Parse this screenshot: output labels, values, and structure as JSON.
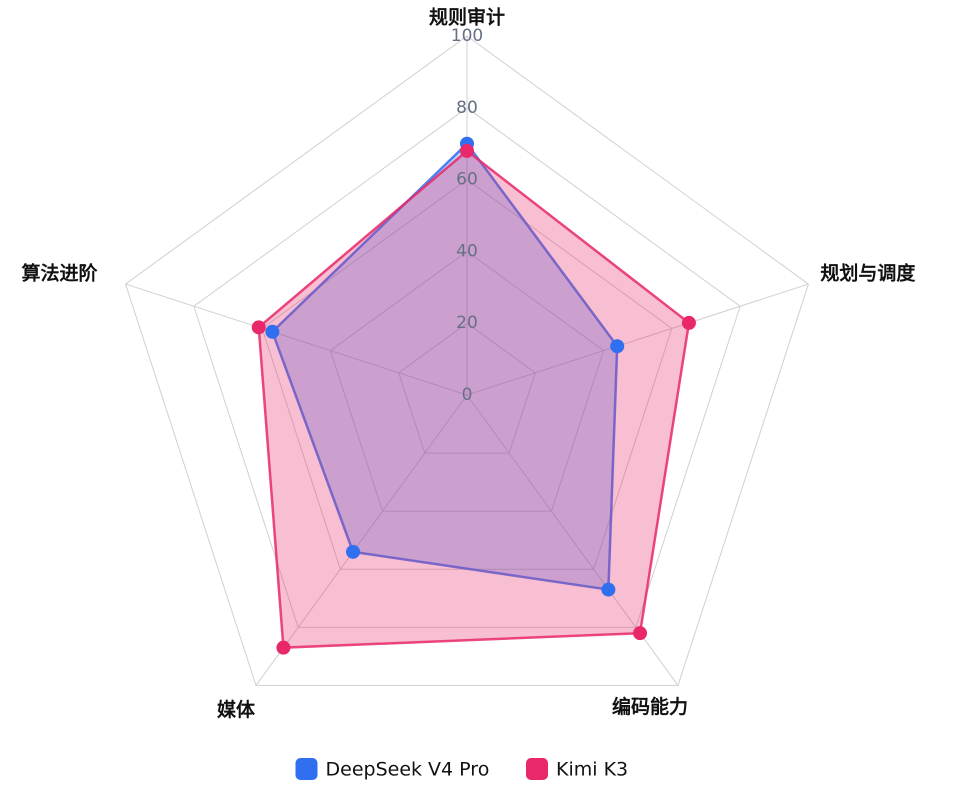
{
  "chart_data": {
    "type": "radar",
    "categories": [
      "规则审计",
      "规划与调度",
      "编码能力",
      "媒体",
      "算法进阶"
    ],
    "series": [
      {
        "name": "DeepSeek V4 Pro",
        "color": "#2f6ff0",
        "values": [
          70,
          44,
          67,
          54,
          57
        ]
      },
      {
        "name": "Kimi K3",
        "color": "#e8286a",
        "values": [
          68,
          65,
          82,
          87,
          61
        ]
      }
    ],
    "rlim": [
      0,
      100
    ],
    "rticks": [
      0,
      20,
      40,
      60,
      80,
      100
    ],
    "grid": true,
    "legend": "bottom"
  }
}
